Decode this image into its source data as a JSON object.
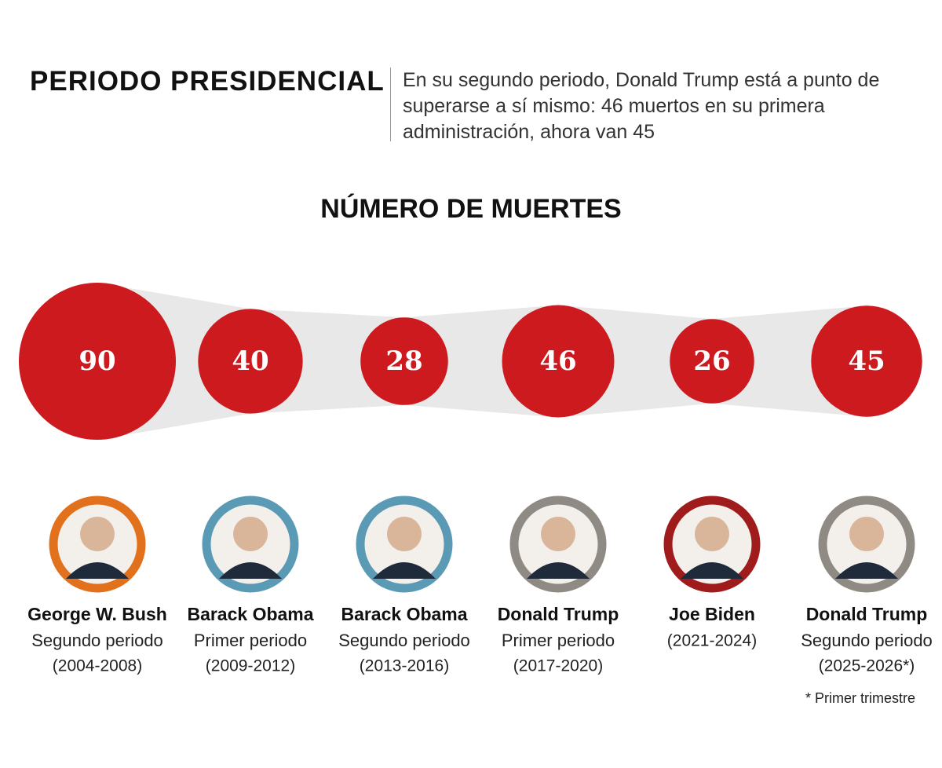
{
  "header": {
    "title": "PERIODO PRESIDENCIAL",
    "text": "En su segundo periodo, Donald Trump está a punto de superarse a sí mismo: 46 muertos en su primera administración, ahora van 45"
  },
  "chart_data": {
    "type": "bubble",
    "title": "NÚMERO DE MUERTES",
    "categories": [
      "George W. Bush",
      "Barack Obama",
      "Barack Obama",
      "Donald Trump",
      "Joe Biden",
      "Donald Trump"
    ],
    "periods": [
      "Segundo periodo",
      "Primer periodo",
      "Segundo periodo",
      "Primer periodo",
      null,
      "Segundo periodo"
    ],
    "years": [
      "(2004-2008)",
      "(2009-2012)",
      "(2013-2016)",
      "(2017-2020)",
      "(2021-2024)",
      "(2025-2026*)"
    ],
    "values": [
      90,
      40,
      28,
      46,
      26,
      45
    ],
    "color": "#cc1a1f",
    "ring_colors": [
      "#e2711d",
      "#5b9ab5",
      "#5b9ab5",
      "#8f8b84",
      "#a01c1c",
      "#8f8b84"
    ]
  },
  "footnote": "* Primer trimestre"
}
